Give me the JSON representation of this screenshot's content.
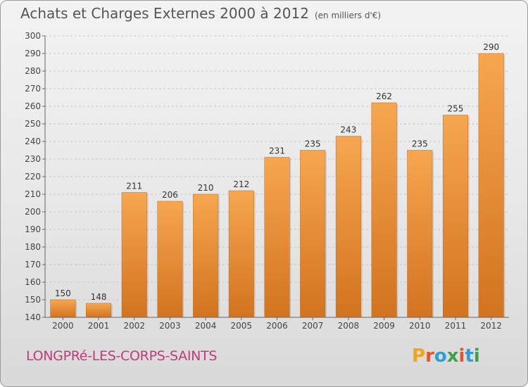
{
  "title": "Achats et Charges Externes 2000 à 2012",
  "subtitle": "(en milliers d'€)",
  "commune": "LONGPRé-LES-CORPS-SAINTS",
  "logo": {
    "letters": [
      "P",
      "r",
      "o",
      "x",
      "i",
      "t",
      "i"
    ],
    "colors": [
      "#f2a31c",
      "#e6542d",
      "#2c9fd8",
      "#3aa34a",
      "#e6542d",
      "#2c9fd8",
      "#3aa34a"
    ]
  },
  "colors": {
    "bar_top": "#f7a650",
    "bar_bottom": "#d2731f",
    "grid": "#c8c8c8",
    "axis": "#666666"
  },
  "chart_data": {
    "type": "bar",
    "categories": [
      "2000",
      "2001",
      "2002",
      "2003",
      "2004",
      "2005",
      "2006",
      "2007",
      "2008",
      "2009",
      "2010",
      "2011",
      "2012"
    ],
    "values": [
      150,
      148,
      211,
      206,
      210,
      212,
      231,
      235,
      243,
      262,
      235,
      255,
      290
    ],
    "title": "Achats et Charges Externes 2000 à 2012",
    "ylim": [
      140,
      300
    ],
    "ytick_step": 10,
    "grid": true,
    "data_labels": true
  }
}
